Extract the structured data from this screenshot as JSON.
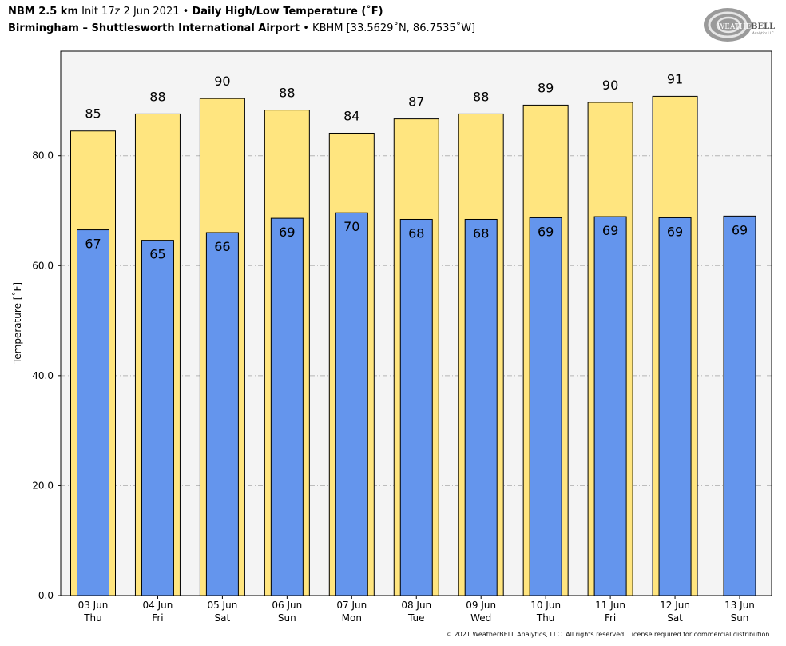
{
  "header": {
    "model": "NBM 2.5 km",
    "init": "Init 17z 2 Jun 2021",
    "bullet": "•",
    "product": "Daily High/Low Temperature (˚F)",
    "location": "Birmingham – Shuttlesworth International Airport",
    "station": "KBHM [33.5629˚N, 86.7535˚W]"
  },
  "logo": {
    "text_top": "WEATHER",
    "text_bold": "BELL",
    "text_small": "Analytics LLC"
  },
  "copyright": "© 2021 WeatherBELL Analytics, LLC. All rights reserved. License required for commercial distribution.",
  "colors": {
    "high": "#ffe57f",
    "low": "#6495ed",
    "plot_bg": "#f4f4f4",
    "grid": "#b4b4b4"
  },
  "chart_data": {
    "type": "bar",
    "title": "Daily High/Low Temperature (˚F)",
    "ylabel": "Temperature [˚F]",
    "ylim": [
      0,
      99
    ],
    "yticks": [
      0,
      20,
      40,
      60,
      80
    ],
    "ytick_labels": [
      "0.0",
      "20.0",
      "40.0",
      "60.0",
      "80.0"
    ],
    "grid": true,
    "categories": [
      [
        "03 Jun",
        "Thu"
      ],
      [
        "04 Jun",
        "Fri"
      ],
      [
        "05 Jun",
        "Sat"
      ],
      [
        "06 Jun",
        "Sun"
      ],
      [
        "07 Jun",
        "Mon"
      ],
      [
        "08 Jun",
        "Tue"
      ],
      [
        "09 Jun",
        "Wed"
      ],
      [
        "10 Jun",
        "Thu"
      ],
      [
        "11 Jun",
        "Fri"
      ],
      [
        "12 Jun",
        "Sat"
      ],
      [
        "13 Jun",
        "Sun"
      ]
    ],
    "series": [
      {
        "name": "High",
        "values": [
          84.5,
          87.6,
          90.4,
          88.3,
          84.1,
          86.7,
          87.6,
          89.2,
          89.7,
          90.8,
          null
        ],
        "labels": [
          "85",
          "88",
          "90",
          "88",
          "84",
          "87",
          "88",
          "89",
          "90",
          "91",
          ""
        ]
      },
      {
        "name": "Low",
        "values": [
          66.5,
          64.6,
          66.0,
          68.6,
          69.6,
          68.4,
          68.4,
          68.7,
          68.9,
          68.7,
          69.0
        ],
        "labels": [
          "67",
          "65",
          "66",
          "69",
          "70",
          "68",
          "68",
          "69",
          "69",
          "69",
          "69"
        ]
      }
    ]
  }
}
